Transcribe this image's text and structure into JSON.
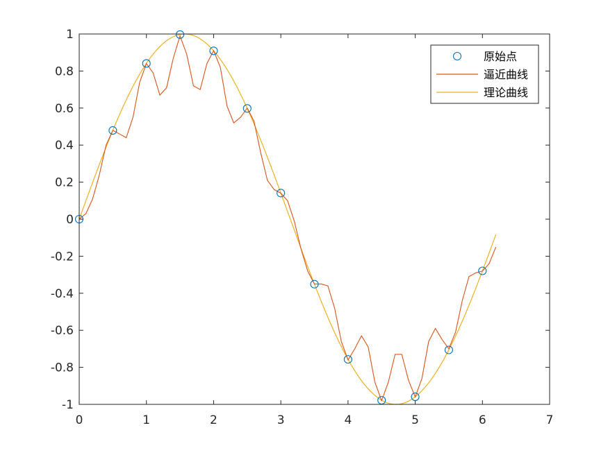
{
  "chart_data": {
    "type": "line",
    "title": "",
    "xlabel": "",
    "ylabel": "",
    "xlim": [
      0,
      7
    ],
    "ylim": [
      -1,
      1
    ],
    "xticks": [
      0,
      1,
      2,
      3,
      4,
      5,
      6,
      7
    ],
    "yticks": [
      -1,
      -0.8,
      -0.6,
      -0.4,
      -0.2,
      0,
      0.2,
      0.4,
      0.6,
      0.8,
      1
    ],
    "xtick_labels": [
      "0",
      "1",
      "2",
      "3",
      "4",
      "5",
      "6",
      "7"
    ],
    "ytick_labels": [
      "-1",
      "-0.8",
      "-0.6",
      "-0.4",
      "-0.2",
      "0",
      "0.2",
      "0.4",
      "0.6",
      "0.8",
      "1"
    ],
    "grid": false,
    "legend_position": "top-right",
    "series": [
      {
        "name": "原始点",
        "style": "markers",
        "marker": "circle",
        "color": "#0072BD",
        "x": [
          0,
          0.5,
          1,
          1.5,
          2,
          2.5,
          3,
          3.5,
          4,
          4.5,
          5,
          5.5,
          6
        ],
        "y": [
          0,
          0.479,
          0.841,
          0.997,
          0.909,
          0.598,
          0.141,
          -0.351,
          -0.757,
          -0.978,
          -0.959,
          -0.706,
          -0.279
        ]
      },
      {
        "name": "逼近曲线",
        "style": "line",
        "color": "#D95319",
        "x": [
          0,
          0.1,
          0.2,
          0.3,
          0.4,
          0.5,
          0.6,
          0.7,
          0.8,
          0.9,
          1.0,
          1.1,
          1.2,
          1.3,
          1.4,
          1.5,
          1.6,
          1.7,
          1.8,
          1.9,
          2.0,
          2.1,
          2.2,
          2.3,
          2.4,
          2.5,
          2.6,
          2.7,
          2.8,
          2.9,
          3.0,
          3.1,
          3.2,
          3.3,
          3.4,
          3.5,
          3.6,
          3.7,
          3.8,
          3.9,
          4.0,
          4.1,
          4.2,
          4.3,
          4.4,
          4.5,
          4.6,
          4.7,
          4.8,
          4.9,
          5.0,
          5.1,
          5.2,
          5.3,
          5.4,
          5.5,
          5.6,
          5.7,
          5.8,
          5.9,
          6.0,
          6.1,
          6.2
        ],
        "y": [
          0,
          0.03,
          0.11,
          0.24,
          0.4,
          0.48,
          0.46,
          0.44,
          0.55,
          0.74,
          0.84,
          0.79,
          0.67,
          0.71,
          0.87,
          0.99,
          0.89,
          0.72,
          0.7,
          0.84,
          0.91,
          0.82,
          0.61,
          0.52,
          0.55,
          0.6,
          0.53,
          0.36,
          0.21,
          0.16,
          0.14,
          0.1,
          -0.01,
          -0.16,
          -0.28,
          -0.35,
          -0.35,
          -0.36,
          -0.48,
          -0.66,
          -0.76,
          -0.7,
          -0.63,
          -0.69,
          -0.88,
          -0.98,
          -0.88,
          -0.73,
          -0.73,
          -0.87,
          -0.96,
          -0.86,
          -0.66,
          -0.59,
          -0.65,
          -0.7,
          -0.61,
          -0.44,
          -0.31,
          -0.29,
          -0.28,
          -0.24,
          -0.15
        ]
      },
      {
        "name": "理论曲线",
        "style": "line",
        "color": "#EDB120",
        "function": "sin(x)",
        "x_range": [
          0,
          6.2
        ]
      }
    ]
  }
}
